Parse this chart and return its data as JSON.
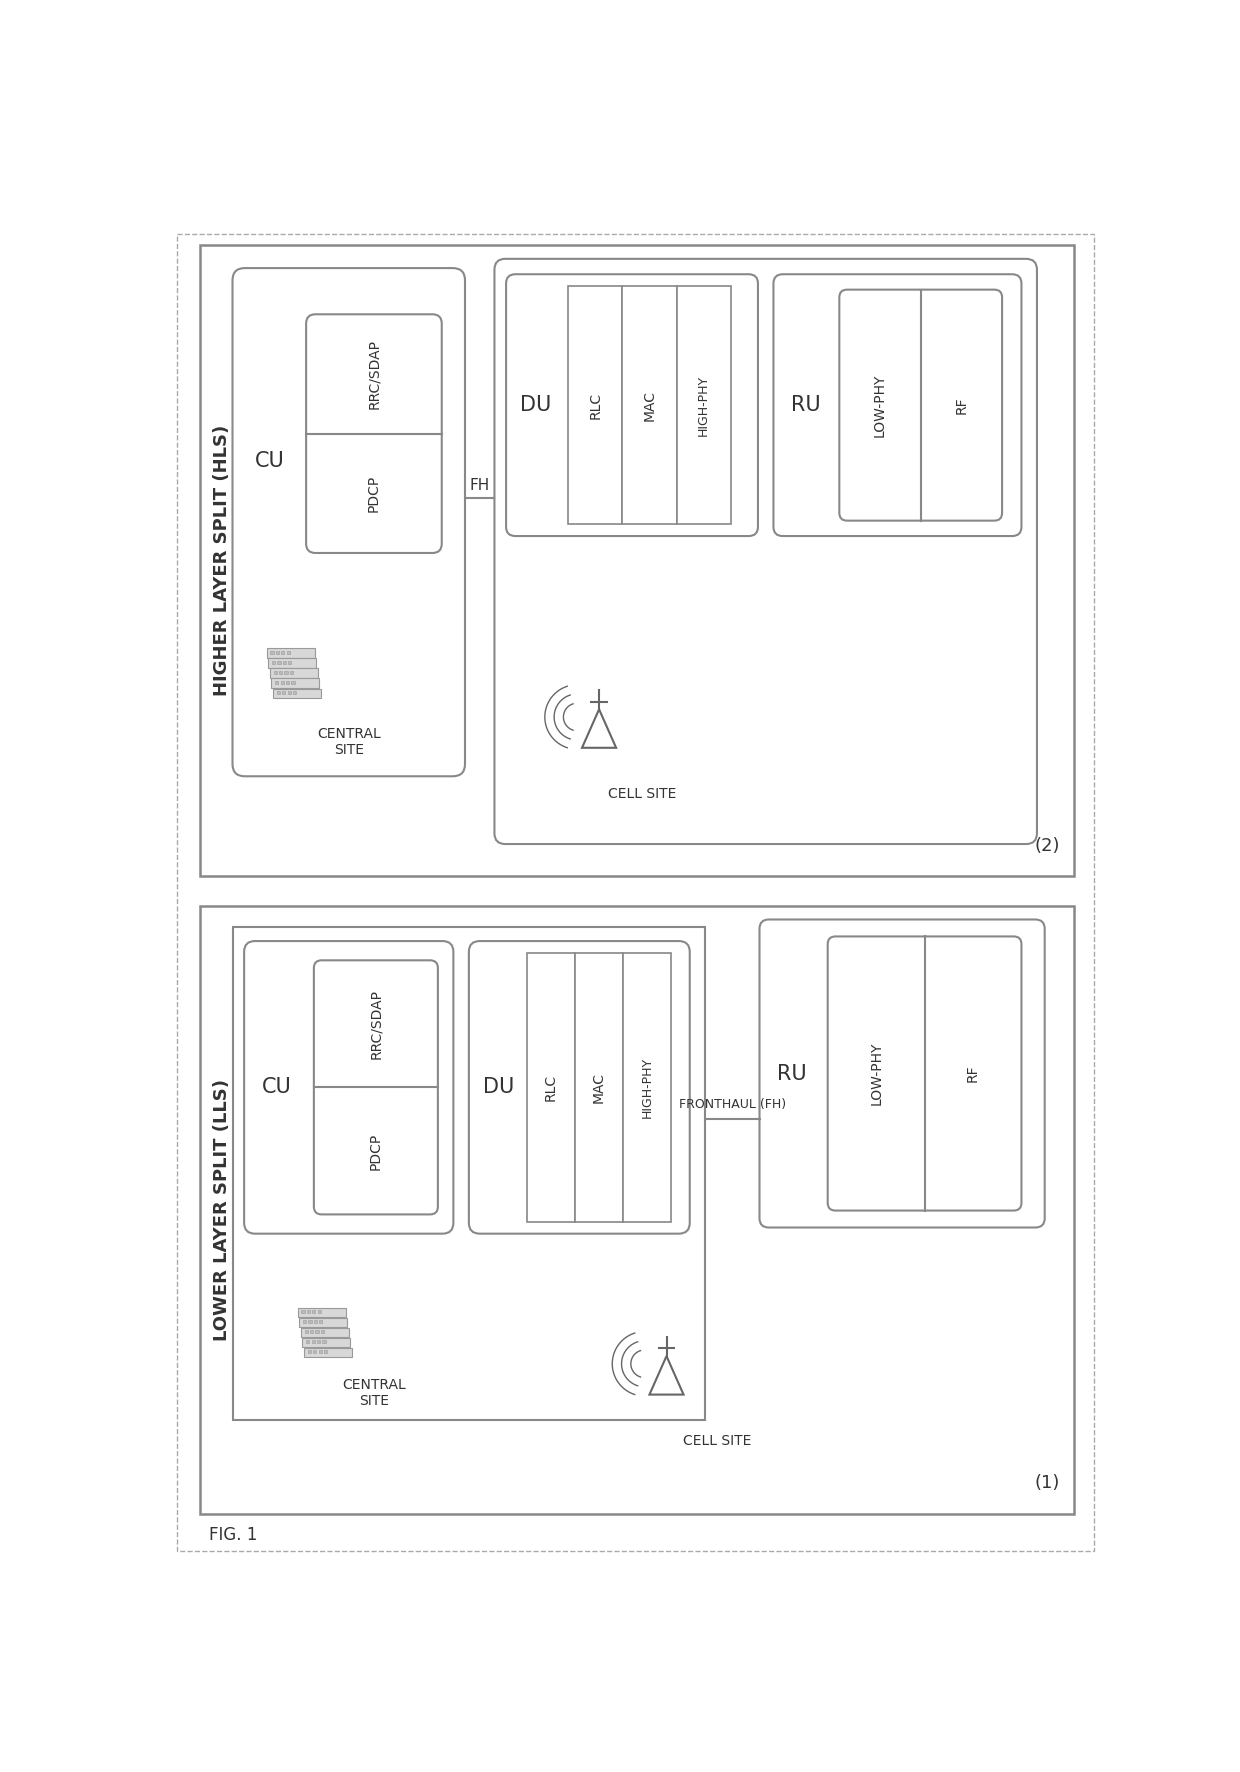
{
  "fig_label": "FIG. 1",
  "hls": {
    "title": "HIGHER LAYER SPLIT (HLS)",
    "label": "(2)",
    "cu_label": "CU",
    "rrc_sdap_label": "RRC/SDAP",
    "pdcp_label": "PDCP",
    "central_site_label": "CENTRAL\nSITE",
    "fh_label": "FH",
    "du_label": "DU",
    "rlc_label": "RLC",
    "mac_label": "MAC",
    "highphy_label": "HIGH-PHY",
    "ru_label": "RU",
    "lowphy_label": "LOW-PHY",
    "rf_label": "RF",
    "cell_site_label": "CELL SITE"
  },
  "lls": {
    "title": "LOWER LAYER SPLIT (LLS)",
    "label": "(1)",
    "cu_label": "CU",
    "rrc_sdap_label": "RRC/SDAP",
    "pdcp_label": "PDCP",
    "central_site_label": "CENTRAL\nSITE",
    "fronthaul_label": "FRONTHAUL (FH)",
    "du_label": "DU",
    "rlc_label": "RLC",
    "mac_label": "MAC",
    "highphy_label": "HIGH-PHY",
    "ru_label": "RU",
    "lowphy_label": "LOW-PHY",
    "rf_label": "RF",
    "cell_site_label": "CELL SITE"
  },
  "edge_color": "#888888",
  "text_color": "#333333",
  "bg_white": "#ffffff"
}
